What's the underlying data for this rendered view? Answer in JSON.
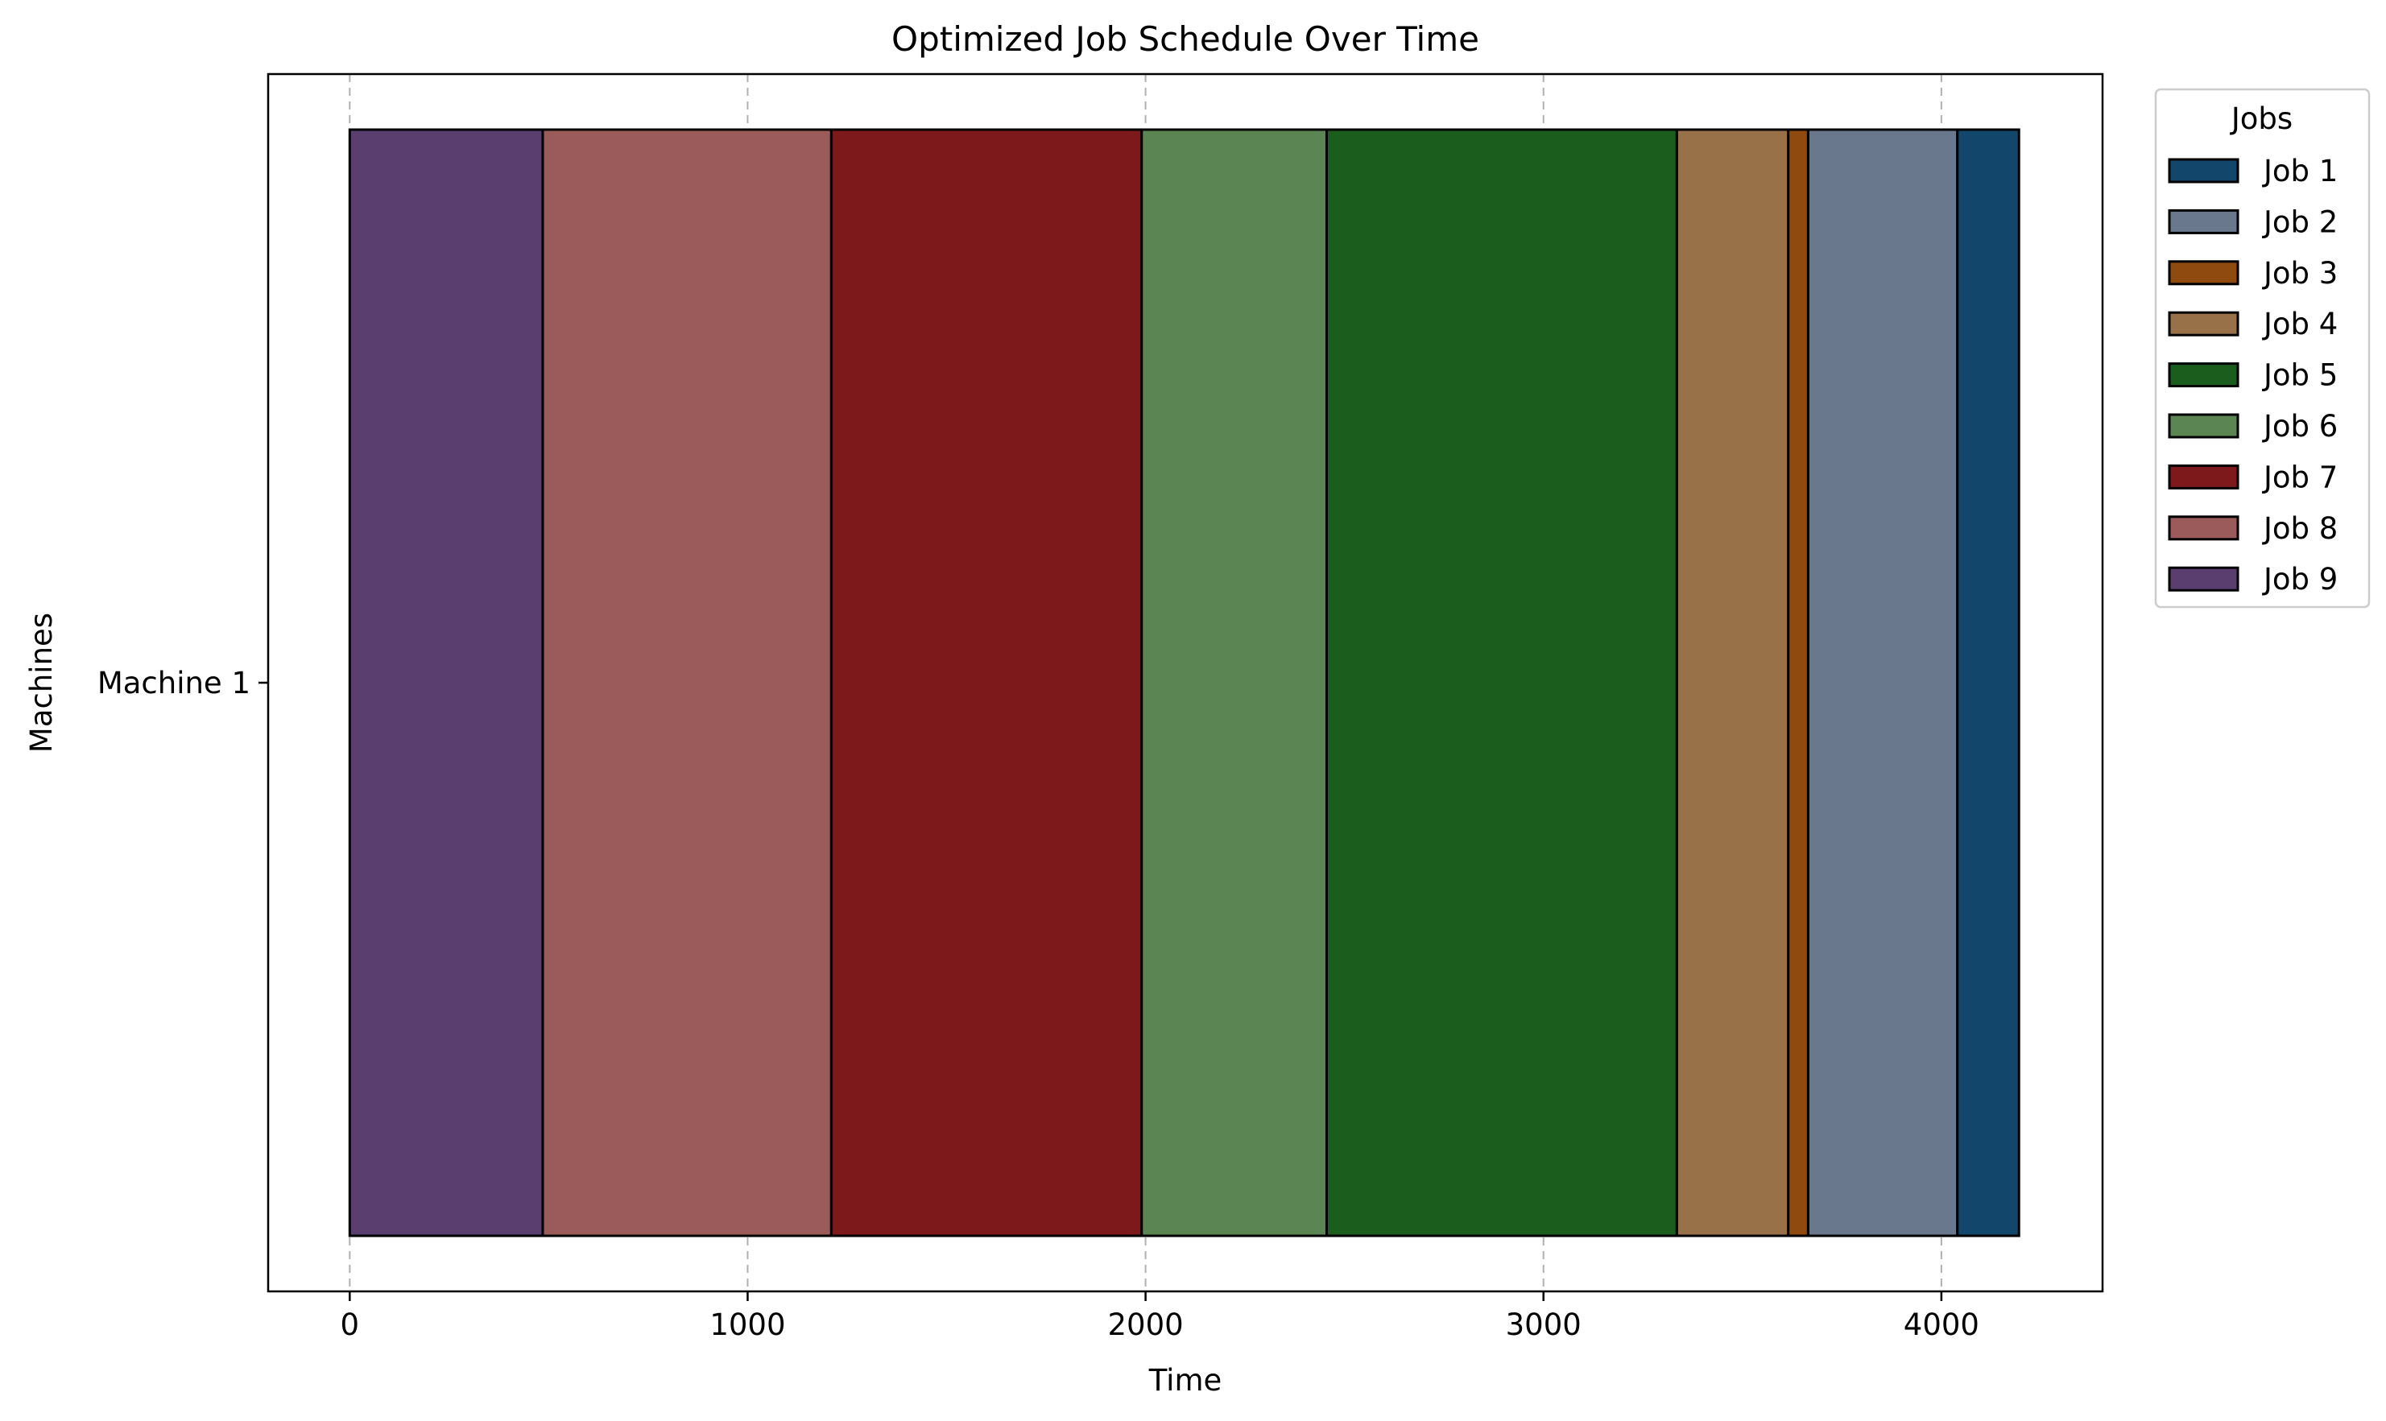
{
  "chart_data": {
    "type": "gantt",
    "title": "Optimized Job Schedule Over Time",
    "xlabel": "Time",
    "ylabel": "Machines",
    "xlim": [
      -205,
      4405
    ],
    "xticks": [
      0,
      1000,
      2000,
      3000,
      4000
    ],
    "grid": "x-axis, dashed",
    "categories": [
      "Machine 1"
    ],
    "legend": {
      "title": "Jobs",
      "placement": "outside right, top",
      "entries": [
        "Job 1",
        "Job 2",
        "Job 3",
        "Job 4",
        "Job 5",
        "Job 6",
        "Job 7",
        "Job 8",
        "Job 9"
      ]
    },
    "series": [
      {
        "name": "Job 1",
        "machine": "Machine 1",
        "start": 4040,
        "end": 4195,
        "color": "#13466b"
      },
      {
        "name": "Job 2",
        "machine": "Machine 1",
        "start": 3665,
        "end": 4040,
        "color": "#69788c"
      },
      {
        "name": "Job 3",
        "machine": "Machine 1",
        "start": 3615,
        "end": 3665,
        "color": "#8f4a0f"
      },
      {
        "name": "Job 4",
        "machine": "Machine 1",
        "start": 3335,
        "end": 3615,
        "color": "#997149"
      },
      {
        "name": "Job 5",
        "machine": "Machine 1",
        "start": 2455,
        "end": 3335,
        "color": "#1b5d1d"
      },
      {
        "name": "Job 6",
        "machine": "Machine 1",
        "start": 1990,
        "end": 2455,
        "color": "#5b8654"
      },
      {
        "name": "Job 7",
        "machine": "Machine 1",
        "start": 1210,
        "end": 1990,
        "color": "#7d191b"
      },
      {
        "name": "Job 8",
        "machine": "Machine 1",
        "start": 485,
        "end": 1210,
        "color": "#9a5b5a"
      },
      {
        "name": "Job 9",
        "machine": "Machine 1",
        "start": 0,
        "end": 485,
        "color": "#5a3e6f"
      }
    ]
  }
}
